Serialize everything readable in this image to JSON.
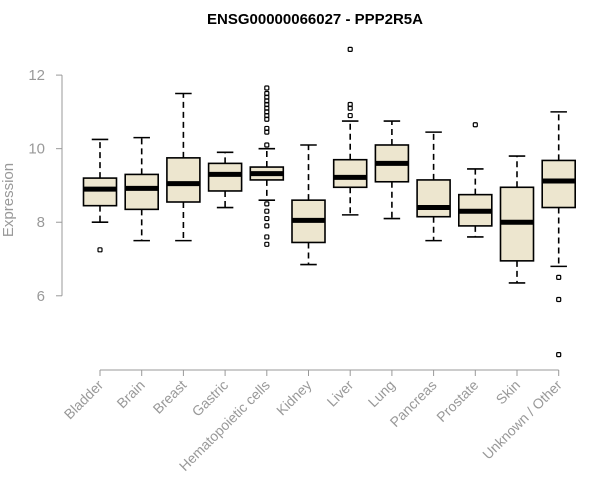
{
  "chart_data": {
    "type": "boxplot",
    "title": "ENSG00000066027 - PPP2R5A",
    "xlabel": "",
    "ylabel": "Expression",
    "ylim": [
      4.2,
      12.9
    ],
    "yticks": [
      6,
      8,
      10,
      12
    ],
    "box_fill": "#ede6cf",
    "axis_color": "#999999",
    "categories": [
      "Bladder",
      "Brain",
      "Breast",
      "Gastric",
      "Hematopoietic cells",
      "Kidney",
      "Liver",
      "Lung",
      "Pancreas",
      "Prostate",
      "Skin",
      "Unknown / Other"
    ],
    "tick_labels": [
      "Bladder",
      "Brain",
      "Breast",
      "Gastric",
      "Hematopoietic cells",
      "Kidney",
      "Liver",
      "Lung",
      "Pancreas",
      "Prostate",
      "Skin",
      "Unknown / Other"
    ],
    "boxes": [
      {
        "name": "Bladder",
        "min": 8.0,
        "q1": 8.45,
        "median": 8.9,
        "q3": 9.2,
        "max": 10.25,
        "outliers": [
          7.25
        ]
      },
      {
        "name": "Brain",
        "min": 7.5,
        "q1": 8.35,
        "median": 8.92,
        "q3": 9.3,
        "max": 10.3,
        "outliers": []
      },
      {
        "name": "Breast",
        "min": 7.5,
        "q1": 8.55,
        "median": 9.05,
        "q3": 9.75,
        "max": 11.5,
        "outliers": []
      },
      {
        "name": "Gastric",
        "min": 8.4,
        "q1": 8.85,
        "median": 9.3,
        "q3": 9.6,
        "max": 9.9,
        "outliers": []
      },
      {
        "name": "Hematopoietic cells",
        "min": 8.6,
        "q1": 9.15,
        "median": 9.32,
        "q3": 9.5,
        "max": 10.0,
        "outliers": [
          11.65,
          11.5,
          11.4,
          11.3,
          11.2,
          11.1,
          11.0,
          10.9,
          10.8,
          10.55,
          10.45,
          10.1,
          8.5,
          8.3,
          8.1,
          7.9,
          7.6,
          7.4
        ]
      },
      {
        "name": "Kidney",
        "min": 6.85,
        "q1": 7.45,
        "median": 8.05,
        "q3": 8.6,
        "max": 10.1,
        "outliers": []
      },
      {
        "name": "Liver",
        "min": 8.2,
        "q1": 8.95,
        "median": 9.22,
        "q3": 9.7,
        "max": 10.75,
        "outliers": [
          12.7,
          11.2,
          11.1,
          10.9
        ]
      },
      {
        "name": "Lung",
        "min": 8.1,
        "q1": 9.1,
        "median": 9.6,
        "q3": 10.1,
        "max": 10.75,
        "outliers": []
      },
      {
        "name": "Pancreas",
        "min": 7.5,
        "q1": 8.15,
        "median": 8.4,
        "q3": 9.15,
        "max": 10.45,
        "outliers": []
      },
      {
        "name": "Prostate",
        "min": 7.6,
        "q1": 7.9,
        "median": 8.3,
        "q3": 8.75,
        "max": 9.45,
        "outliers": [
          10.65
        ]
      },
      {
        "name": "Skin",
        "min": 6.35,
        "q1": 6.95,
        "median": 8.0,
        "q3": 8.95,
        "max": 9.8,
        "outliers": []
      },
      {
        "name": "Unknown / Other",
        "min": 6.8,
        "q1": 8.4,
        "median": 9.12,
        "q3": 9.68,
        "max": 11.0,
        "outliers": [
          6.5,
          5.9,
          4.4
        ]
      }
    ]
  }
}
